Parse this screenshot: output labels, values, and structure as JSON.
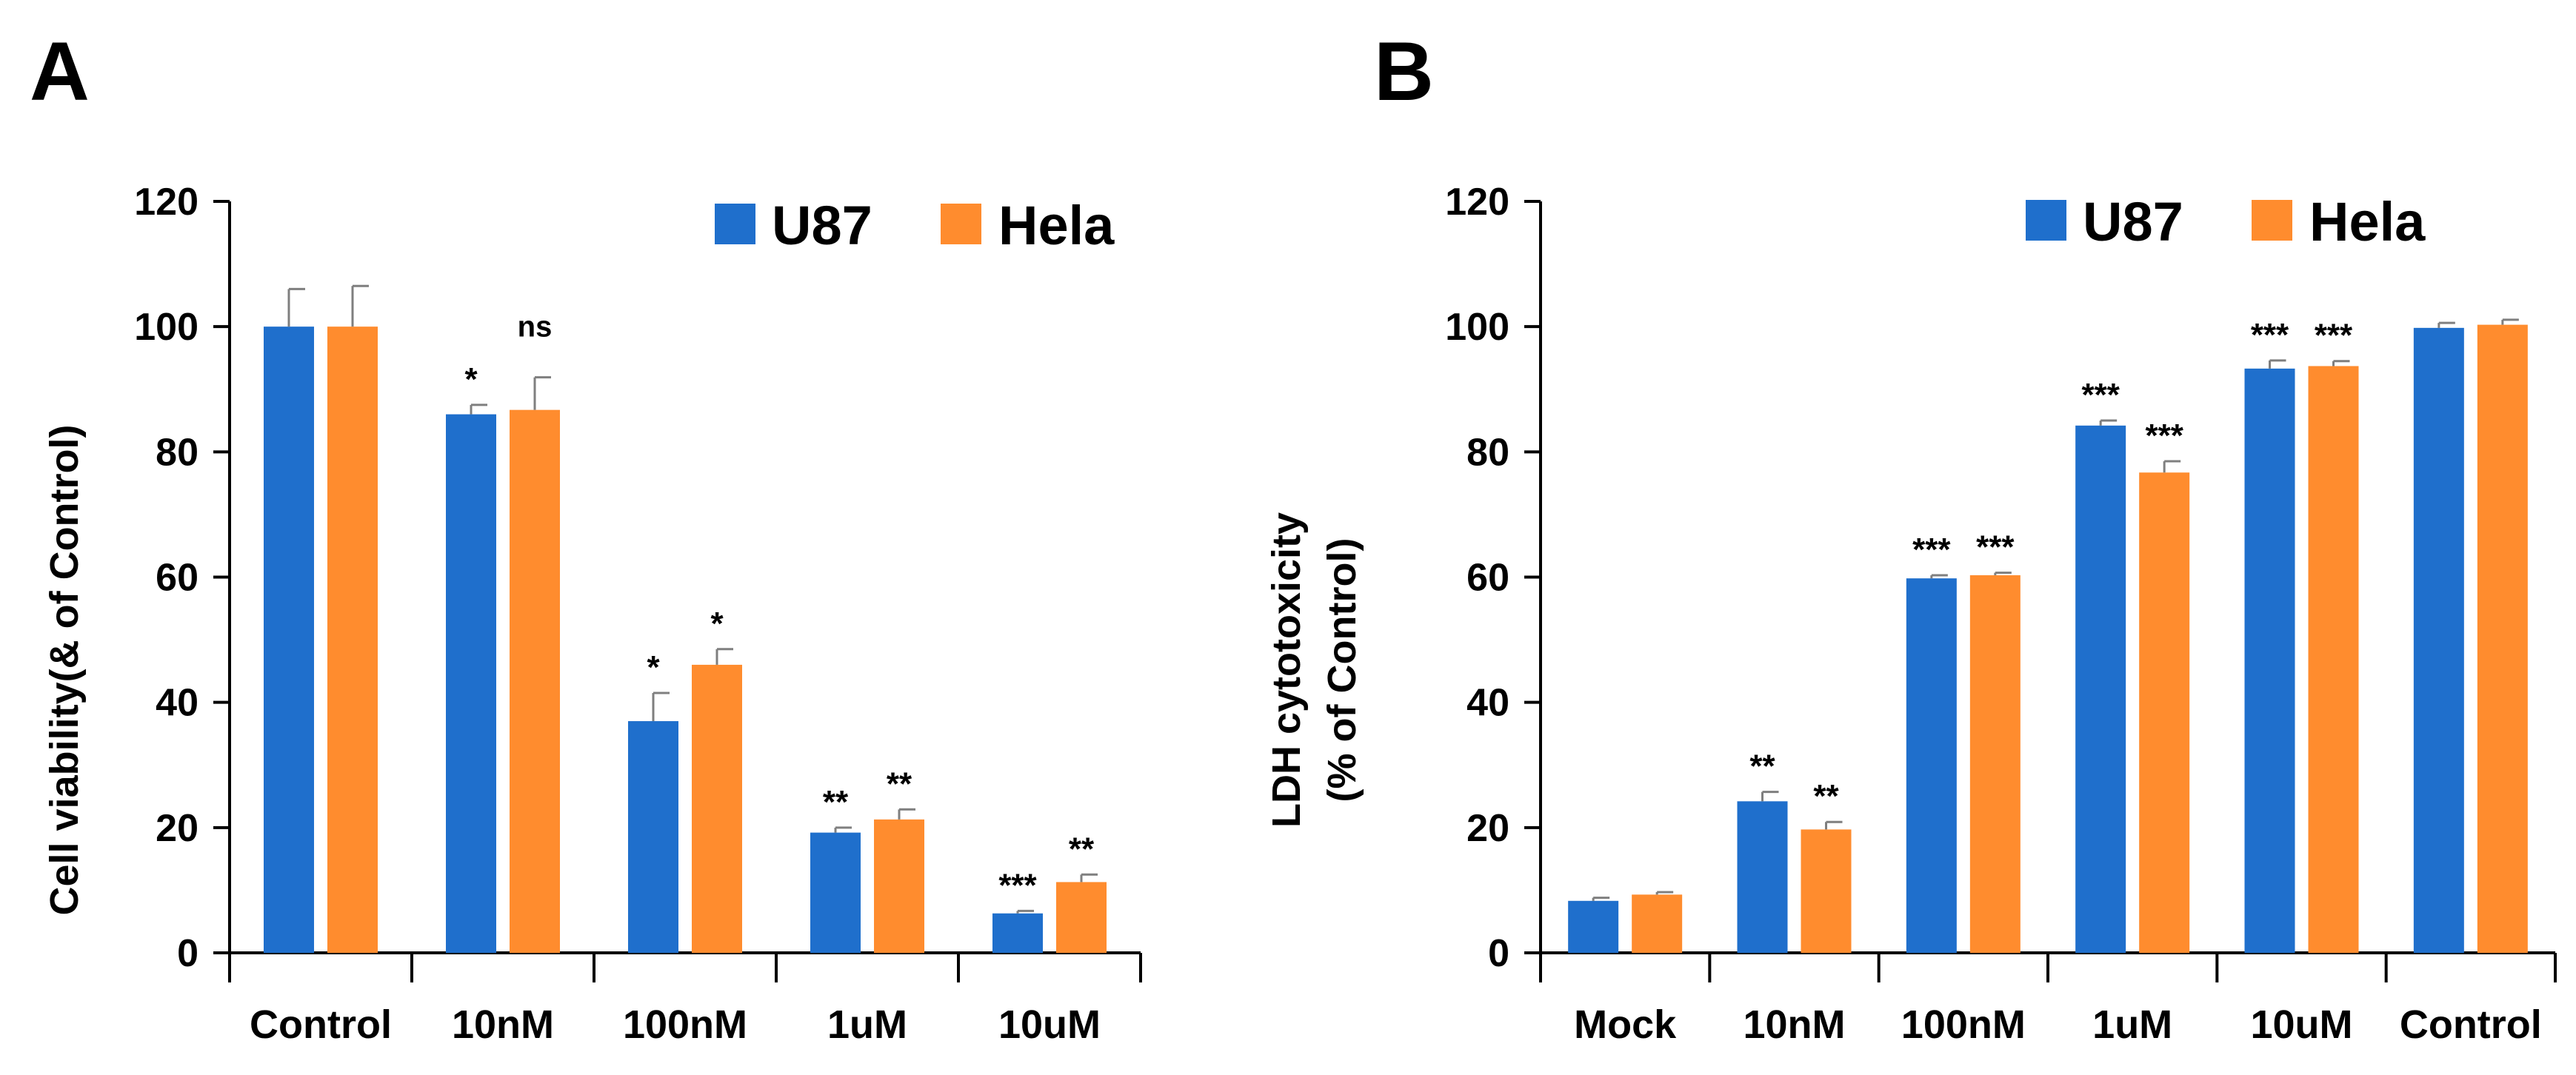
{
  "colors": {
    "u87": "#1F6FCC",
    "hela": "#FF8C2E",
    "axis": "#000000",
    "error": "#7f7f7f"
  },
  "chart_data": [
    {
      "type": "bar",
      "panel_label": "A",
      "title": "",
      "xlabel": "",
      "ylabel": "Cell viability(& of Control)",
      "ylim": [
        0,
        120
      ],
      "yticks": [
        "0",
        "20",
        "40",
        "60",
        "80",
        "100",
        "120"
      ],
      "categories": [
        "Control",
        "10nM",
        "100nM",
        "1uM",
        "10uM"
      ],
      "legend_position": "top-right",
      "series": [
        {
          "name": "U87",
          "values": [
            100,
            86,
            37,
            19.2,
            6.3
          ],
          "errors": [
            6,
            1.5,
            4.5,
            0.8,
            0.4
          ],
          "annotations": [
            "",
            "*",
            "*",
            "**",
            "***"
          ]
        },
        {
          "name": "Hela",
          "values": [
            100,
            86.7,
            46,
            21.3,
            11.3
          ],
          "errors": [
            6.5,
            5.2,
            2.5,
            1.6,
            1.2
          ],
          "annotations": [
            "",
            "ns",
            "*",
            "**",
            "**"
          ]
        }
      ]
    },
    {
      "type": "bar",
      "panel_label": "B",
      "title": "",
      "xlabel": "",
      "ylabel": "LDH cytotoxicity",
      "ylabel_line2": "(% of Control)",
      "ylim": [
        0,
        120
      ],
      "yticks": [
        "0",
        "20",
        "40",
        "60",
        "80",
        "100",
        "120"
      ],
      "categories": [
        "Mock",
        "10nM",
        "100nM",
        "1uM",
        "10uM",
        "Control"
      ],
      "legend_position": "top-right",
      "series": [
        {
          "name": "U87",
          "values": [
            8.3,
            24.2,
            59.8,
            84.2,
            93.3,
            99.8
          ],
          "errors": [
            0.5,
            1.5,
            0.5,
            0.8,
            1.3,
            0.8
          ],
          "annotations": [
            "",
            "**",
            "***",
            "***",
            "***",
            ""
          ]
        },
        {
          "name": "Hela",
          "values": [
            9.3,
            19.7,
            60.3,
            76.7,
            93.7,
            100.3
          ],
          "errors": [
            0.4,
            1.2,
            0.4,
            1.8,
            0.8,
            0.8
          ],
          "annotations": [
            "",
            "**",
            "***",
            "***",
            "***",
            ""
          ]
        }
      ]
    }
  ]
}
